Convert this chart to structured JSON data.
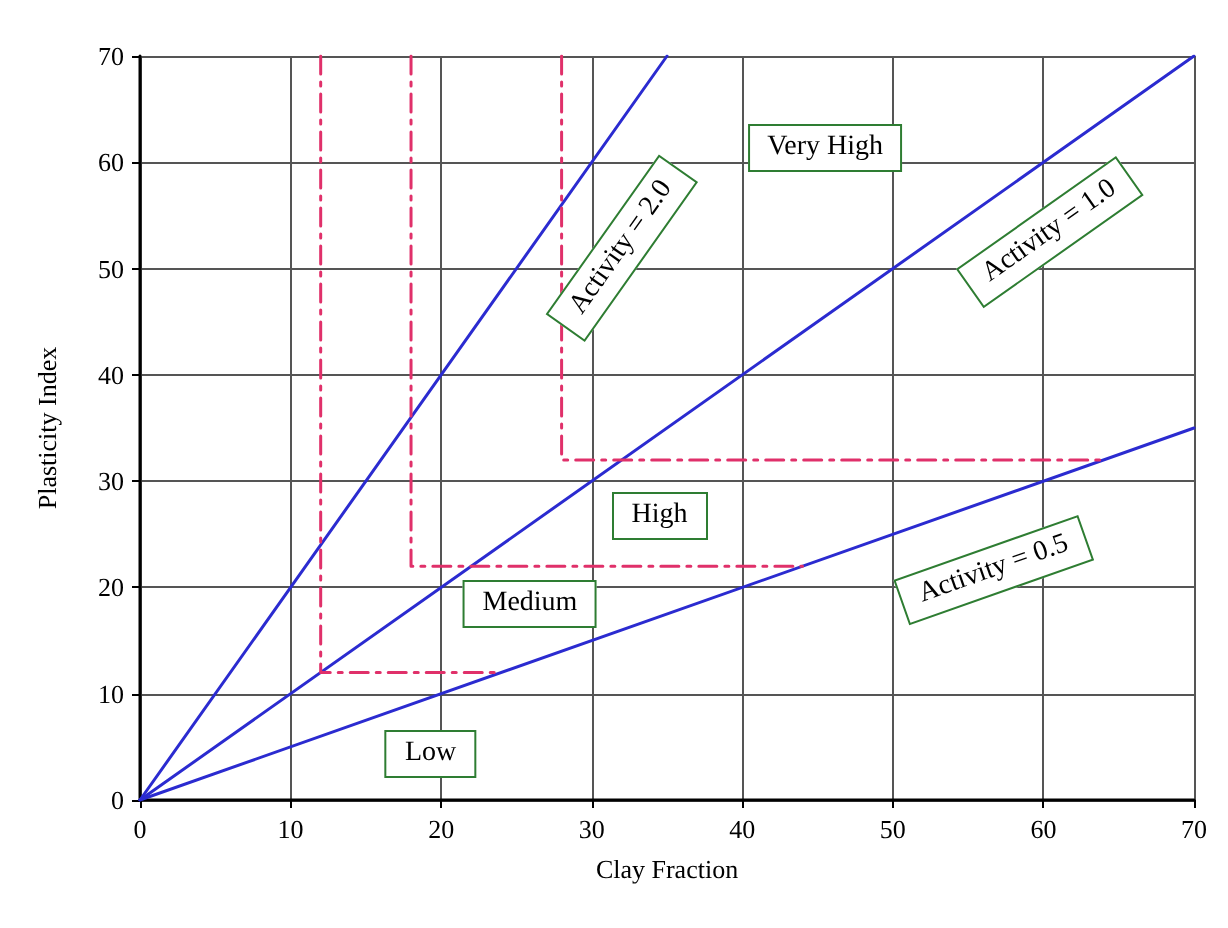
{
  "chart_data": {
    "type": "line",
    "xlabel": "Clay Fraction",
    "ylabel": "Plasticity Index",
    "xlim": [
      0,
      70
    ],
    "ylim": [
      0,
      70
    ],
    "xticks": [
      0,
      10,
      20,
      30,
      40,
      50,
      60,
      70
    ],
    "yticks": [
      0,
      10,
      20,
      30,
      40,
      50,
      60,
      70
    ],
    "grid": true,
    "marker": "none",
    "series": [
      {
        "color": "#2b2bd0",
        "x": [
          0,
          35
        ],
        "values": [
          0,
          70
        ]
      },
      {
        "color": "#2b2bd0",
        "x": [
          0,
          70
        ],
        "values": [
          0,
          70
        ]
      },
      {
        "color": "#2b2bd0",
        "x": [
          0,
          70
        ],
        "values": [
          0,
          35
        ]
      },
      {
        "color": "#e0306a",
        "line_style": "dashed",
        "x": [
          12,
          12,
          24
        ],
        "values": [
          70,
          12,
          12
        ]
      },
      {
        "color": "#e0306a",
        "line_style": "dashed",
        "x": [
          18,
          18,
          44
        ],
        "values": [
          70,
          22,
          22
        ]
      },
      {
        "color": "#e0306a",
        "line_style": "dashed",
        "x": [
          28,
          28,
          64
        ],
        "values": [
          70,
          32,
          32
        ]
      }
    ],
    "annotations": [
      "Activity = 2.0",
      "Very High",
      "Activity = 1.0",
      "High",
      "Medium",
      "Activity = 0.5",
      "Low"
    ]
  }
}
